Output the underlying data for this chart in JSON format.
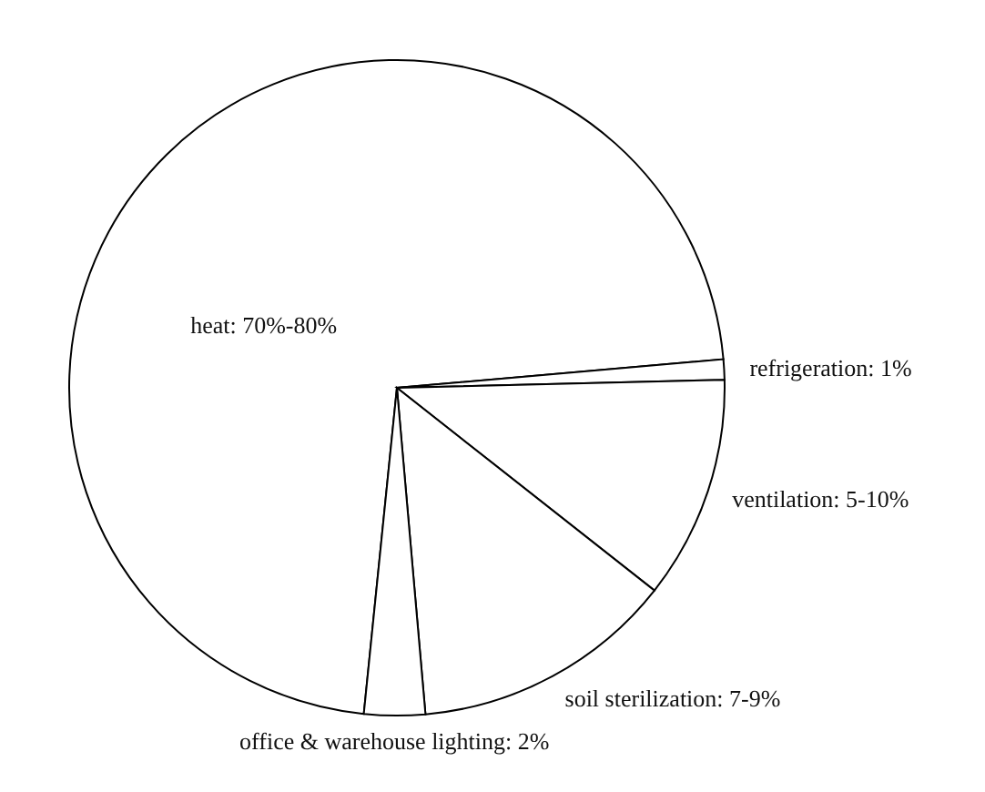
{
  "chart_data": {
    "type": "pie",
    "categories": [
      "heat: 70%-80%",
      "refrigeration: 1%",
      "ventilation: 5-10%",
      "soil sterilization: 7-9%",
      "office & warehouse lighting: 2%"
    ],
    "values": [
      72,
      1,
      11,
      13,
      3
    ],
    "colors": [
      "#ffffff",
      "#ffffff",
      "#ffffff",
      "#ffffff",
      "#ffffff"
    ]
  }
}
